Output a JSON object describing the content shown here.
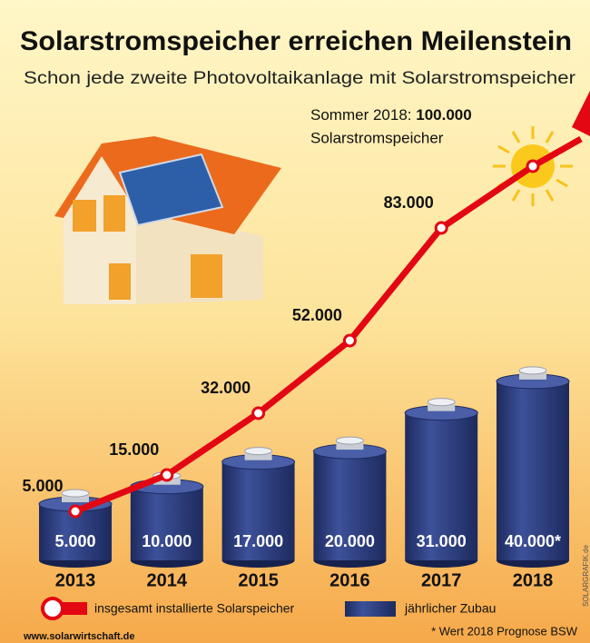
{
  "chart_data": {
    "type": "combo",
    "title": "Solarstromspeicher erreichen Meilenstein",
    "subtitle": "Schon jede zweite Photovoltaikanlage mit Solarstromspeicher",
    "categories": [
      "2013",
      "2014",
      "2015",
      "2016",
      "2017",
      "2018"
    ],
    "series": [
      {
        "name": "insgesamt installierte Solarspeicher",
        "type": "line",
        "color": "#e30613",
        "values": [
          5000,
          15000,
          32000,
          52000,
          83000,
          100000
        ],
        "value_labels": [
          "5.000",
          "15.000",
          "32.000",
          "52.000",
          "83.000",
          "100.000"
        ]
      },
      {
        "name": "jährlicher Zubau",
        "type": "bar",
        "color": "#2b3a7c",
        "values": [
          5000,
          10000,
          17000,
          20000,
          31000,
          40000
        ],
        "value_labels": [
          "5.000",
          "10.000",
          "17.000",
          "20.000",
          "31.000",
          "40.000*"
        ]
      }
    ],
    "annotation": {
      "prefix": "Sommer 2018:",
      "suffix": "Solarstromspeicher"
    },
    "footnote": "* Wert 2018 Prognose BSW",
    "source": "www.solarwirtschaft.de",
    "credit": "SOLARGRAFIK.de"
  }
}
